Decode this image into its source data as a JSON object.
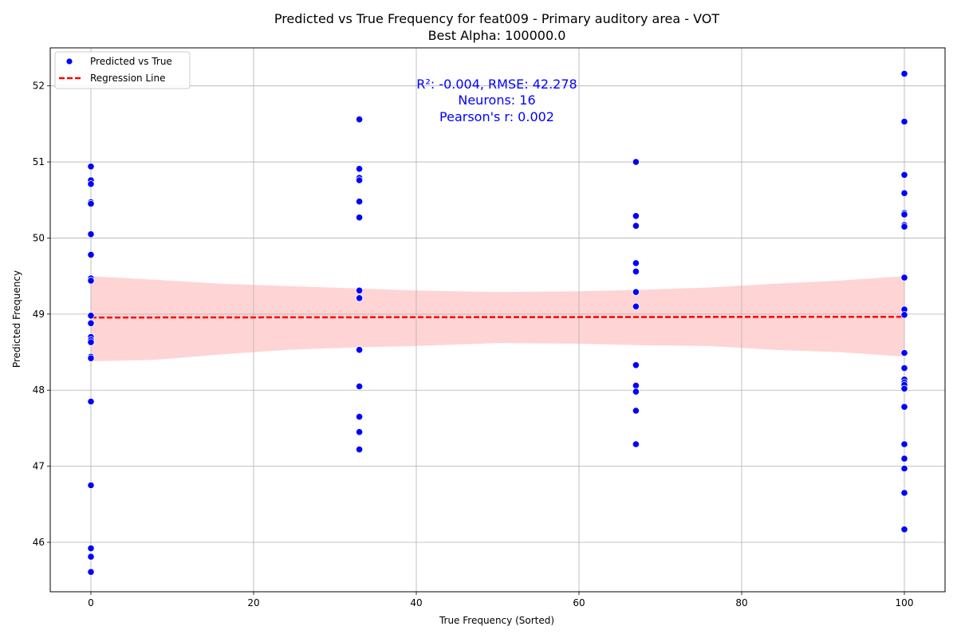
{
  "chart_data": {
    "type": "scatter",
    "title_line1": "Predicted vs True Frequency for feat009 - Primary auditory area - VOT",
    "title_line2": "Best Alpha: 100000.0",
    "xlabel": "True Frequency (Sorted)",
    "ylabel": "Predicted Frequency",
    "xlim": [
      -5,
      105
    ],
    "ylim": [
      45.35,
      52.5
    ],
    "xticks": [
      0,
      20,
      40,
      60,
      80,
      100
    ],
    "yticks": [
      46,
      47,
      48,
      49,
      50,
      51,
      52
    ],
    "grid": true,
    "legend_position": "top-left",
    "legend": {
      "scatter_label": "Predicted vs True",
      "line_label": "Regression Line"
    },
    "annotation": [
      "R²: -0.004, RMSE: 42.278",
      "Neurons: 16",
      "Pearson's r: 0.002"
    ],
    "colors": {
      "points": "#0000ff",
      "line": "#ff0000",
      "band": "#ffcccc"
    },
    "regression": {
      "x": [
        0,
        100
      ],
      "y": [
        48.955,
        48.965
      ]
    },
    "confidence_band": [
      {
        "x": 0,
        "lower": 48.38,
        "upper": 49.5
      },
      {
        "x": 8,
        "lower": 48.4,
        "upper": 49.45
      },
      {
        "x": 16,
        "lower": 48.47,
        "upper": 49.4
      },
      {
        "x": 24,
        "lower": 48.53,
        "upper": 49.37
      },
      {
        "x": 32,
        "lower": 48.56,
        "upper": 49.34
      },
      {
        "x": 40,
        "lower": 48.58,
        "upper": 49.31
      },
      {
        "x": 50,
        "lower": 48.62,
        "upper": 49.29
      },
      {
        "x": 60,
        "lower": 48.61,
        "upper": 49.3
      },
      {
        "x": 68,
        "lower": 48.59,
        "upper": 49.32
      },
      {
        "x": 76,
        "lower": 48.58,
        "upper": 49.35
      },
      {
        "x": 84,
        "lower": 48.53,
        "upper": 49.4
      },
      {
        "x": 92,
        "lower": 48.5,
        "upper": 49.44
      },
      {
        "x": 100,
        "lower": 48.44,
        "upper": 49.5
      }
    ],
    "series": [
      {
        "name": "Predicted vs True",
        "points": [
          {
            "x": 0,
            "y": 50.94
          },
          {
            "x": 0,
            "y": 50.76
          },
          {
            "x": 0,
            "y": 50.71
          },
          {
            "x": 0,
            "y": 50.47
          },
          {
            "x": 0,
            "y": 50.45
          },
          {
            "x": 0,
            "y": 50.05
          },
          {
            "x": 0,
            "y": 49.78
          },
          {
            "x": 0,
            "y": 49.47
          },
          {
            "x": 0,
            "y": 49.44
          },
          {
            "x": 0,
            "y": 48.98
          },
          {
            "x": 0,
            "y": 48.88
          },
          {
            "x": 0,
            "y": 48.7
          },
          {
            "x": 0,
            "y": 48.66
          },
          {
            "x": 0,
            "y": 48.63
          },
          {
            "x": 0,
            "y": 48.44
          },
          {
            "x": 0,
            "y": 48.42
          },
          {
            "x": 0,
            "y": 47.85
          },
          {
            "x": 0,
            "y": 46.75
          },
          {
            "x": 0,
            "y": 45.92
          },
          {
            "x": 0,
            "y": 45.81
          },
          {
            "x": 0,
            "y": 45.61
          },
          {
            "x": 33,
            "y": 51.56
          },
          {
            "x": 33,
            "y": 50.91
          },
          {
            "x": 33,
            "y": 50.79
          },
          {
            "x": 33,
            "y": 50.76
          },
          {
            "x": 33,
            "y": 50.48
          },
          {
            "x": 33,
            "y": 50.27
          },
          {
            "x": 33,
            "y": 49.31
          },
          {
            "x": 33,
            "y": 49.21
          },
          {
            "x": 33,
            "y": 48.53
          },
          {
            "x": 33,
            "y": 48.05
          },
          {
            "x": 33,
            "y": 47.65
          },
          {
            "x": 33,
            "y": 47.45
          },
          {
            "x": 33,
            "y": 47.22
          },
          {
            "x": 67,
            "y": 51.0
          },
          {
            "x": 67,
            "y": 50.29
          },
          {
            "x": 67,
            "y": 50.16
          },
          {
            "x": 67,
            "y": 49.67
          },
          {
            "x": 67,
            "y": 49.56
          },
          {
            "x": 67,
            "y": 49.29
          },
          {
            "x": 67,
            "y": 49.1
          },
          {
            "x": 67,
            "y": 48.33
          },
          {
            "x": 67,
            "y": 48.06
          },
          {
            "x": 67,
            "y": 47.98
          },
          {
            "x": 67,
            "y": 47.73
          },
          {
            "x": 67,
            "y": 47.29
          },
          {
            "x": 100,
            "y": 52.16
          },
          {
            "x": 100,
            "y": 51.53
          },
          {
            "x": 100,
            "y": 50.83
          },
          {
            "x": 100,
            "y": 50.59
          },
          {
            "x": 100,
            "y": 50.33
          },
          {
            "x": 100,
            "y": 50.31
          },
          {
            "x": 100,
            "y": 50.17
          },
          {
            "x": 100,
            "y": 50.15
          },
          {
            "x": 100,
            "y": 49.48
          },
          {
            "x": 100,
            "y": 49.06
          },
          {
            "x": 100,
            "y": 48.99
          },
          {
            "x": 100,
            "y": 48.49
          },
          {
            "x": 100,
            "y": 48.29
          },
          {
            "x": 100,
            "y": 48.14
          },
          {
            "x": 100,
            "y": 48.1
          },
          {
            "x": 100,
            "y": 48.07
          },
          {
            "x": 100,
            "y": 48.02
          },
          {
            "x": 100,
            "y": 47.78
          },
          {
            "x": 100,
            "y": 47.29
          },
          {
            "x": 100,
            "y": 47.1
          },
          {
            "x": 100,
            "y": 46.97
          },
          {
            "x": 100,
            "y": 46.65
          },
          {
            "x": 100,
            "y": 46.17
          }
        ]
      }
    ]
  }
}
